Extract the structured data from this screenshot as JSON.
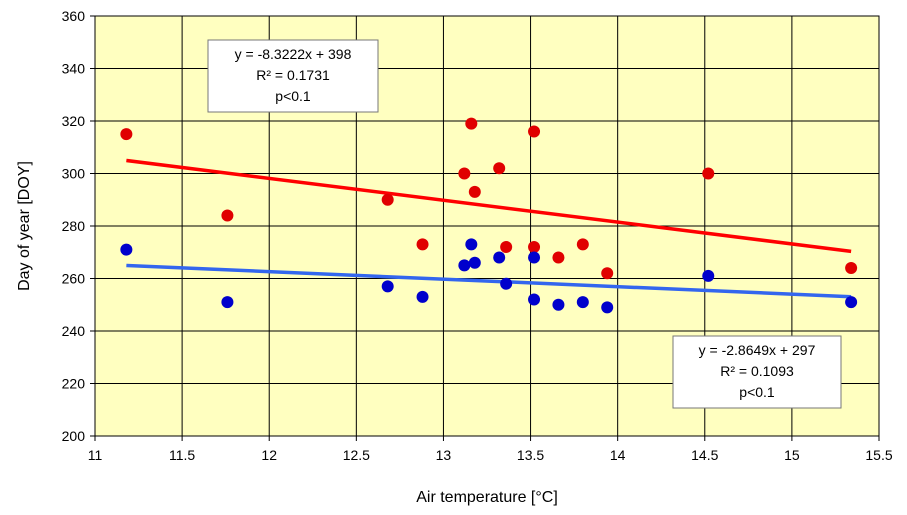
{
  "chart_data": {
    "type": "scatter",
    "xlabel": "Air temperature [°C]",
    "ylabel": "Day of year [DOY]",
    "xlim": [
      11,
      15.5
    ],
    "ylim": [
      200,
      360
    ],
    "xticks": [
      11,
      11.5,
      12,
      12.5,
      13,
      13.5,
      14,
      14.5,
      15,
      15.5
    ],
    "xtick_labels": [
      "11",
      "11.5",
      "12",
      "12.5",
      "13",
      "13.5",
      "14",
      "14.5",
      "15",
      "15.5"
    ],
    "yticks": [
      200,
      220,
      240,
      260,
      280,
      300,
      320,
      340,
      360
    ],
    "ytick_labels": [
      "200",
      "220",
      "240",
      "260",
      "280",
      "300",
      "320",
      "340",
      "360"
    ],
    "grid": true,
    "plot_background": "#FFFFC0",
    "series": [
      {
        "color": "#E00000",
        "points": [
          [
            11.18,
            315
          ],
          [
            11.76,
            284
          ],
          [
            12.68,
            290
          ],
          [
            12.88,
            273
          ],
          [
            13.12,
            300
          ],
          [
            13.16,
            319
          ],
          [
            13.18,
            293
          ],
          [
            13.32,
            302
          ],
          [
            13.36,
            272
          ],
          [
            13.52,
            316
          ],
          [
            13.52,
            272
          ],
          [
            13.66,
            268
          ],
          [
            13.8,
            273
          ],
          [
            13.94,
            262
          ],
          [
            14.52,
            300
          ],
          [
            15.34,
            264
          ]
        ],
        "trendline": {
          "slope": -8.3222,
          "intercept": 398,
          "x_range": [
            11.18,
            15.34
          ],
          "color": "#FF0000"
        },
        "annotation": {
          "line1": "y = -8.3222x + 398",
          "line2": "R² = 0.1731",
          "line3": "p<0.1"
        }
      },
      {
        "color": "#0000CC",
        "points": [
          [
            11.18,
            271
          ],
          [
            11.76,
            251
          ],
          [
            12.68,
            257
          ],
          [
            12.88,
            253
          ],
          [
            13.12,
            265
          ],
          [
            13.16,
            273
          ],
          [
            13.18,
            266
          ],
          [
            13.32,
            268
          ],
          [
            13.36,
            258
          ],
          [
            13.52,
            268
          ],
          [
            13.52,
            252
          ],
          [
            13.66,
            250
          ],
          [
            13.8,
            251
          ],
          [
            13.94,
            249
          ],
          [
            14.52,
            261
          ],
          [
            15.34,
            251
          ]
        ],
        "trendline": {
          "slope": -2.8649,
          "intercept": 297,
          "x_range": [
            11.18,
            15.34
          ],
          "color": "#3366EE"
        },
        "annotation": {
          "line1": "y = -2.8649x + 297",
          "line2": "R² = 0.1093",
          "line3": "p<0.1"
        }
      }
    ]
  }
}
